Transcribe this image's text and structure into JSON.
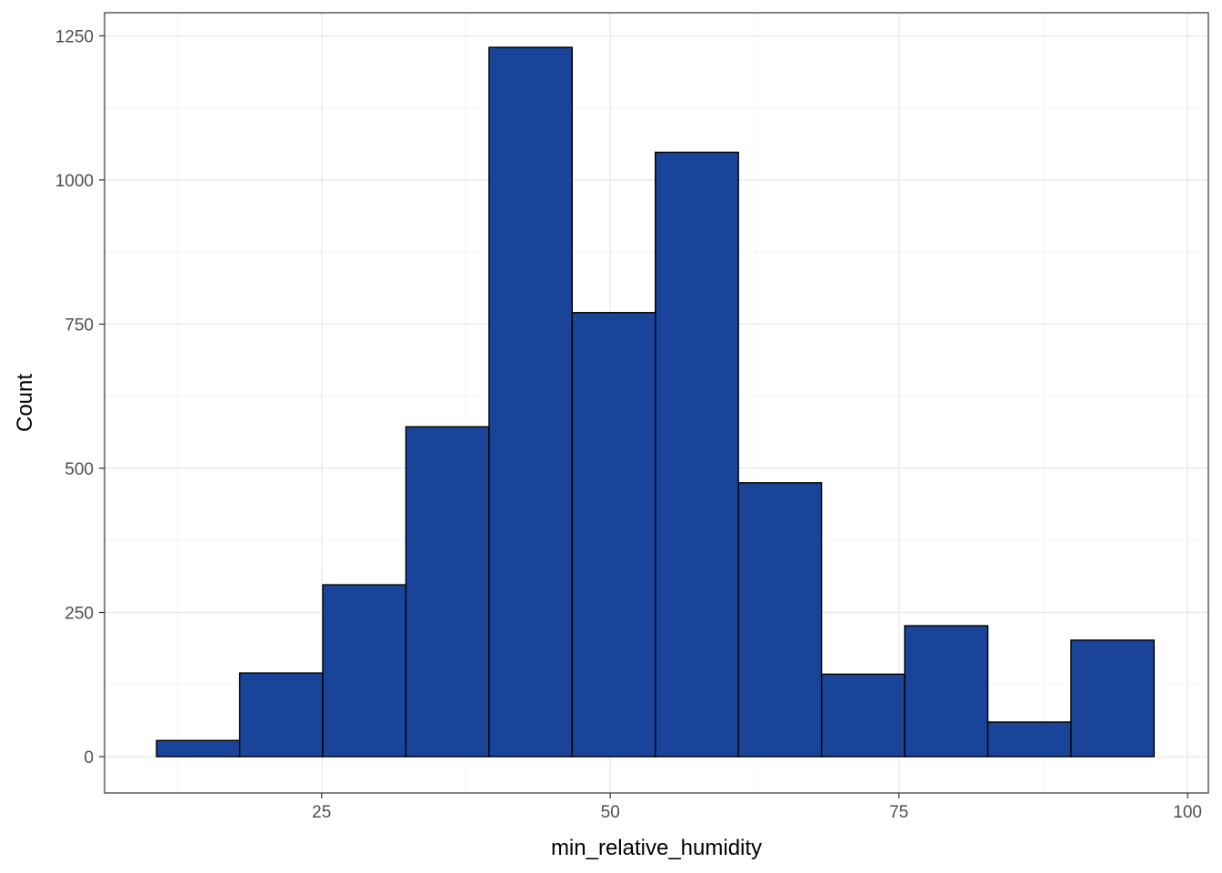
{
  "chart_data": {
    "type": "bar",
    "title": "",
    "xlabel": "min_relative_humidity",
    "ylabel": "Count",
    "xlim": [
      6.2,
      101.8
    ],
    "ylim": [
      -63,
      1290
    ],
    "x_ticks": [
      25,
      50,
      75,
      100
    ],
    "x_tick_labels": [
      "25",
      "50",
      "75",
      "100"
    ],
    "y_ticks": [
      0,
      250,
      500,
      750,
      1000,
      1250
    ],
    "y_tick_labels": [
      "0",
      "250",
      "500",
      "750",
      "1000",
      "1250"
    ],
    "grid": true,
    "legend": "none",
    "bin_width": 7.2,
    "bins": [
      {
        "x0": 10.7,
        "x1": 17.9,
        "count": 28
      },
      {
        "x0": 17.9,
        "x1": 25.1,
        "count": 145
      },
      {
        "x0": 25.1,
        "x1": 32.3,
        "count": 298
      },
      {
        "x0": 32.3,
        "x1": 39.5,
        "count": 572
      },
      {
        "x0": 39.5,
        "x1": 46.7,
        "count": 1230
      },
      {
        "x0": 46.7,
        "x1": 53.9,
        "count": 770
      },
      {
        "x0": 53.9,
        "x1": 61.1,
        "count": 1048
      },
      {
        "x0": 61.1,
        "x1": 68.3,
        "count": 475
      },
      {
        "x0": 68.3,
        "x1": 75.5,
        "count": 143
      },
      {
        "x0": 75.5,
        "x1": 82.7,
        "count": 227
      },
      {
        "x0": 82.7,
        "x1": 89.9,
        "count": 60
      },
      {
        "x0": 89.9,
        "x1": 97.1,
        "count": 202
      }
    ],
    "colors": {
      "bar_fill": "#1a4499",
      "bar_stroke": "#000000"
    }
  }
}
